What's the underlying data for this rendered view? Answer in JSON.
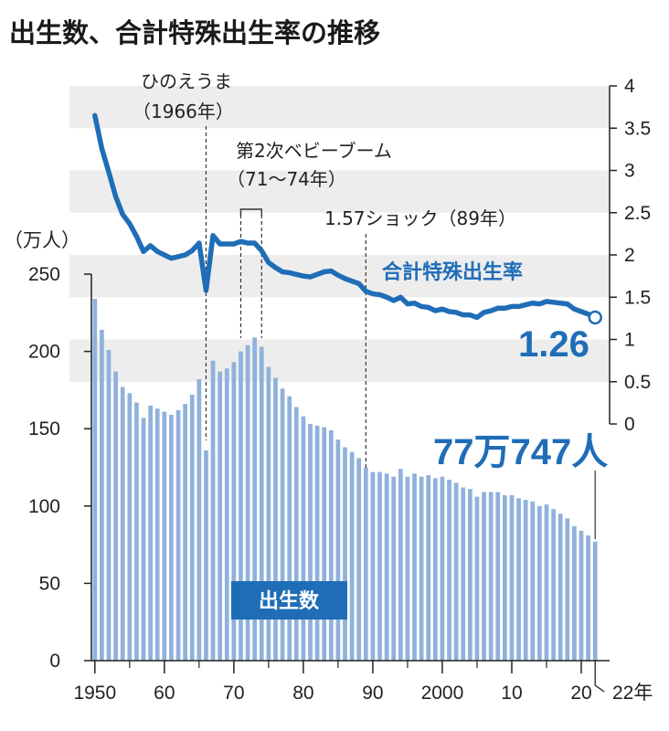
{
  "chart_data": {
    "type": "bar+line",
    "title": "出生数、合計特殊出生率の推移",
    "x": [
      1950,
      1951,
      1952,
      1953,
      1954,
      1955,
      1956,
      1957,
      1958,
      1959,
      1960,
      1961,
      1962,
      1963,
      1964,
      1965,
      1966,
      1967,
      1968,
      1969,
      1970,
      1971,
      1972,
      1973,
      1974,
      1975,
      1976,
      1977,
      1978,
      1979,
      1980,
      1981,
      1982,
      1983,
      1984,
      1985,
      1986,
      1987,
      1988,
      1989,
      1990,
      1991,
      1992,
      1993,
      1994,
      1995,
      1996,
      1997,
      1998,
      1999,
      2000,
      2001,
      2002,
      2003,
      2004,
      2005,
      2006,
      2007,
      2008,
      2009,
      2010,
      2011,
      2012,
      2013,
      2014,
      2015,
      2016,
      2017,
      2018,
      2019,
      2020,
      2021,
      2022
    ],
    "x_ticks": [
      "1950",
      "60",
      "70",
      "80",
      "90",
      "2000",
      "10",
      "20"
    ],
    "x_end_label": "22年",
    "series": [
      {
        "name": "出生数",
        "type": "bar",
        "axis": "left",
        "unit": "万人",
        "color": "#8fb1dc",
        "values": [
          234,
          214,
          201,
          187,
          177,
          173,
          167,
          157,
          165,
          163,
          161,
          159,
          162,
          166,
          172,
          182,
          136,
          194,
          187,
          189,
          193,
          200,
          204,
          209,
          203,
          190,
          183,
          176,
          171,
          164,
          158,
          153,
          152,
          151,
          149,
          143,
          138,
          135,
          131,
          125,
          122,
          122,
          121,
          119,
          124,
          119,
          121,
          119,
          120,
          118,
          119,
          117,
          115,
          112,
          111,
          106,
          109,
          109,
          109,
          107,
          107,
          105,
          104,
          103,
          100,
          101,
          98,
          95,
          92,
          87,
          84,
          81,
          77
        ]
      },
      {
        "name": "合計特殊出生率",
        "type": "line",
        "axis": "right",
        "color": "#1f6db7",
        "values": [
          3.65,
          3.26,
          2.98,
          2.69,
          2.48,
          2.37,
          2.22,
          2.04,
          2.11,
          2.04,
          2.0,
          1.96,
          1.98,
          2.0,
          2.05,
          2.14,
          1.58,
          2.23,
          2.13,
          2.13,
          2.13,
          2.16,
          2.14,
          2.14,
          2.05,
          1.91,
          1.85,
          1.8,
          1.79,
          1.77,
          1.75,
          1.74,
          1.77,
          1.8,
          1.81,
          1.76,
          1.72,
          1.69,
          1.66,
          1.57,
          1.54,
          1.53,
          1.5,
          1.46,
          1.5,
          1.42,
          1.43,
          1.39,
          1.38,
          1.34,
          1.36,
          1.33,
          1.32,
          1.29,
          1.29,
          1.26,
          1.32,
          1.34,
          1.37,
          1.37,
          1.39,
          1.39,
          1.41,
          1.43,
          1.42,
          1.45,
          1.44,
          1.43,
          1.42,
          1.36,
          1.33,
          1.3,
          1.26
        ]
      }
    ],
    "y_left": {
      "label": "（万人）",
      "ticks": [
        "0",
        "50",
        "100",
        "150",
        "200",
        "250"
      ],
      "ylim": [
        0,
        250
      ]
    },
    "y_right": {
      "ticks": [
        "0",
        "0.5",
        "1",
        "1.5",
        "2",
        "2.5",
        "3",
        "3.5",
        "4"
      ],
      "ylim": [
        0,
        4
      ]
    },
    "annotations": {
      "hinoeuma_l1": "ひのえうま",
      "hinoeuma_l2": "（1966年）",
      "babyboom_l1": "第2次ベビーブーム",
      "babyboom_l2": "（71～74年）",
      "shock": "1.57ショック（89年）",
      "tfr_label": "合計特殊出生率",
      "tfr_value": "1.26",
      "births_value": "77万747人",
      "births_label": "出生数"
    },
    "colors": {
      "bar": "#8fb1dc",
      "line": "#1f6db7",
      "label_box": "#1f6db7",
      "band": "#ededed"
    }
  }
}
